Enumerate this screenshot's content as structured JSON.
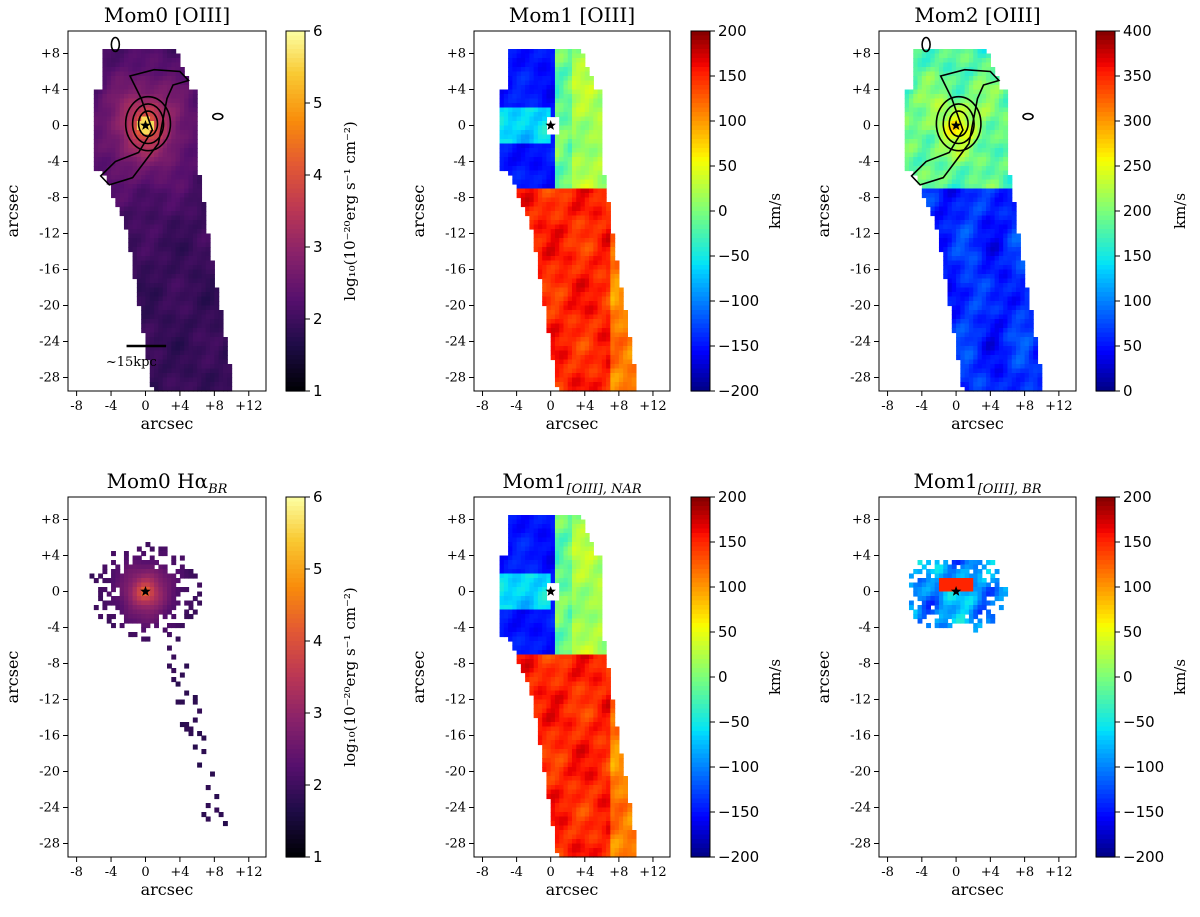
{
  "panels": [
    {
      "id": "p1",
      "title": "Mom0 [OIII]",
      "kind": "flux",
      "xlabel": "arcsec",
      "ylabel": "arcsec",
      "cbar_label": "log₁₀(10⁻²⁰erg s⁻¹ cm⁻²)",
      "cbar_ticks": [
        "1",
        "2",
        "3",
        "4",
        "5",
        "6"
      ],
      "cmap": "inferno",
      "scalebar": "~15kpc",
      "contours": true
    },
    {
      "id": "p2",
      "title": "Mom1 [OIII]",
      "kind": "velocity",
      "xlabel": "arcsec",
      "ylabel": "arcsec",
      "cbar_label": "km/s",
      "cbar_ticks": [
        "−200",
        "−150",
        "−100",
        "−50",
        "0",
        "50",
        "100",
        "150",
        "200"
      ],
      "cmap": "jet",
      "contours": false
    },
    {
      "id": "p3",
      "title": "Mom2 [OIII]",
      "kind": "dispersion",
      "xlabel": "arcsec",
      "ylabel": "arcsec",
      "cbar_label": "km/s",
      "cbar_ticks": [
        "0",
        "50",
        "100",
        "150",
        "200",
        "250",
        "300",
        "350",
        "400"
      ],
      "cmap": "jet",
      "contours": true
    },
    {
      "id": "p4",
      "title": "Mom0 Hα_BR",
      "title_main": "Mom0 Hα",
      "title_sub": "BR",
      "kind": "flux-br",
      "xlabel": "arcsec",
      "ylabel": "arcsec",
      "cbar_label": "log₁₀(10⁻²⁰erg s⁻¹ cm⁻²)",
      "cbar_ticks": [
        "1",
        "2",
        "3",
        "4",
        "5",
        "6"
      ],
      "cmap": "inferno",
      "contours": false
    },
    {
      "id": "p5",
      "title": "Mom1_[OIII], NAR",
      "title_main": "Mom1",
      "title_sub": "[OIII], NAR",
      "kind": "velocity-nar",
      "xlabel": "arcsec",
      "ylabel": "arcsec",
      "cbar_label": "km/s",
      "cbar_ticks": [
        "−200",
        "−150",
        "−100",
        "−50",
        "0",
        "50",
        "100",
        "150",
        "200"
      ],
      "cmap": "jet",
      "contours": false
    },
    {
      "id": "p6",
      "title": "Mom1_[OIII], BR",
      "title_main": "Mom1",
      "title_sub": "[OIII], BR",
      "kind": "velocity-br",
      "xlabel": "arcsec",
      "ylabel": "arcsec",
      "cbar_label": "km/s",
      "cbar_ticks": [
        "−200",
        "−150",
        "−100",
        "−50",
        "0",
        "50",
        "100",
        "150",
        "200"
      ],
      "cmap": "jet",
      "contours": false
    }
  ],
  "chart_data": {
    "type": "heatmap",
    "x_ticks": [
      "-8",
      "-4",
      "0",
      "+4",
      "+8",
      "+12"
    ],
    "y_ticks": [
      "+8",
      "+4",
      "0",
      "-4",
      "-8",
      "-12",
      "-16",
      "-20",
      "-24",
      "-28"
    ],
    "x_tick_values": [
      -8,
      -4,
      0,
      4,
      8,
      12
    ],
    "y_tick_values": [
      8,
      4,
      0,
      -4,
      -8,
      -12,
      -16,
      -20,
      -24,
      -28
    ],
    "xlim": [
      -9,
      14
    ],
    "ylim": [
      -29.5,
      10.5
    ],
    "flux_range": [
      1,
      6
    ],
    "velocity_range": [
      -200,
      200
    ],
    "dispersion_range": [
      0,
      400
    ],
    "nucleus_marker": {
      "x": 0,
      "y": 0,
      "symbol": "star"
    },
    "scalebar_length_arcsec": 4.6
  },
  "colors": {
    "background": "#ffffff",
    "axis": "#000000"
  }
}
